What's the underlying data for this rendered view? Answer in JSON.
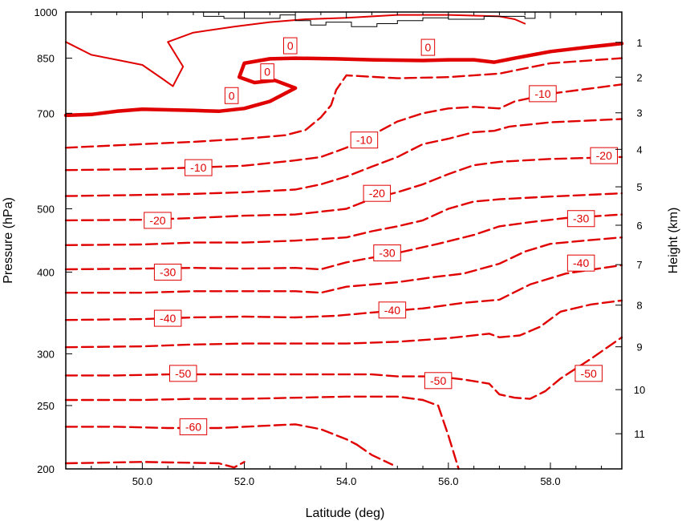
{
  "chart_data": {
    "type": "line",
    "title": "",
    "xlabel": "Latitude (deg)",
    "ylabel": "Pressure (hPa)",
    "y2label": "Height (km)",
    "xlim": [
      48.5,
      59.4
    ],
    "ylim": [
      1000,
      200
    ],
    "y_scale": "log",
    "x_ticks": [
      50.0,
      52.0,
      54.0,
      56.0,
      58.0
    ],
    "x_tick_labels": [
      "50.0",
      "52.0",
      "54.0",
      "56.0",
      "58.0"
    ],
    "y_ticks": [
      200,
      250,
      300,
      400,
      500,
      700,
      850,
      1000
    ],
    "y_tick_labels": [
      "200",
      "250",
      "300",
      "400",
      "500",
      "700",
      "850",
      "1000"
    ],
    "y2_ticks": [
      1,
      2,
      3,
      4,
      5,
      6,
      7,
      8,
      9,
      10,
      11
    ],
    "y2_tick_labels": [
      "1",
      "2",
      "3",
      "4",
      "5",
      "6",
      "7",
      "8",
      "9",
      "10",
      "11"
    ],
    "line_color": "#e00000",
    "terrain_color": "#000000",
    "series": [
      {
        "level": -60,
        "style": "dashed",
        "points": [
          [
            48.5,
            232
          ],
          [
            49.5,
            232
          ],
          [
            50.5,
            231
          ],
          [
            51.5,
            231
          ],
          [
            52.5,
            233
          ],
          [
            53.0,
            234
          ],
          [
            53.5,
            230
          ],
          [
            54.0,
            222
          ],
          [
            54.2,
            218
          ]
        ]
      },
      {
        "level": -60,
        "style": "dashed",
        "points": [
          [
            48.5,
            204
          ],
          [
            50.0,
            205
          ],
          [
            51.5,
            204
          ],
          [
            51.8,
            201
          ],
          [
            52.0,
            205
          ]
        ]
      },
      {
        "level": -60,
        "style": "dashed",
        "points": [
          [
            54.2,
            218
          ],
          [
            54.5,
            210
          ],
          [
            54.9,
            203
          ]
        ]
      },
      {
        "level": -60,
        "style": "dashed",
        "points": [
          [
            55.5,
            255
          ],
          [
            55.8,
            250
          ],
          [
            56.0,
            225
          ],
          [
            56.2,
            200
          ]
        ]
      },
      {
        "level": -50,
        "style": "dashed",
        "points": [
          [
            48.5,
            255
          ],
          [
            50.0,
            255
          ],
          [
            51.0,
            256
          ],
          [
            52.0,
            256
          ],
          [
            53.0,
            257
          ],
          [
            54.0,
            258
          ],
          [
            55.0,
            258
          ],
          [
            55.5,
            255
          ]
        ]
      },
      {
        "level": -50,
        "style": "dashed",
        "points": [
          [
            48.5,
            278
          ],
          [
            49.5,
            278
          ],
          [
            50.5,
            279
          ],
          [
            51.5,
            279
          ],
          [
            52.5,
            279
          ],
          [
            53.5,
            279
          ],
          [
            54.5,
            279
          ],
          [
            55.0,
            277
          ],
          [
            55.8,
            277
          ],
          [
            56.3,
            274
          ],
          [
            56.8,
            270
          ],
          [
            57.0,
            260
          ],
          [
            57.3,
            257
          ],
          [
            57.6,
            256
          ],
          [
            57.9,
            263
          ],
          [
            58.2,
            275
          ],
          [
            58.8,
            295
          ],
          [
            59.4,
            318
          ]
        ]
      },
      {
        "level": -40,
        "style": "dashed",
        "points": [
          [
            48.5,
            307
          ],
          [
            50.0,
            308
          ],
          [
            51.0,
            310
          ],
          [
            52.0,
            311
          ],
          [
            53.0,
            311
          ],
          [
            54.0,
            311
          ],
          [
            55.0,
            313
          ],
          [
            56.0,
            317
          ],
          [
            56.8,
            322
          ],
          [
            57.0,
            318
          ],
          [
            57.4,
            320
          ],
          [
            57.8,
            330
          ],
          [
            58.2,
            348
          ],
          [
            58.8,
            357
          ],
          [
            59.4,
            362
          ]
        ]
      },
      {
        "level": -40,
        "style": "dashed",
        "points": [
          [
            48.5,
            338
          ],
          [
            50.0,
            339
          ],
          [
            51.0,
            341
          ],
          [
            52.0,
            342
          ],
          [
            53.0,
            341
          ],
          [
            53.8,
            343
          ],
          [
            54.5,
            347
          ],
          [
            55.5,
            352
          ],
          [
            56.3,
            359
          ],
          [
            57.0,
            363
          ],
          [
            57.6,
            383
          ],
          [
            58.3,
            398
          ],
          [
            59.4,
            410
          ]
        ]
      },
      {
        "level": -30,
        "style": "dashed",
        "points": [
          [
            48.5,
            372
          ],
          [
            50.0,
            372
          ],
          [
            51.0,
            374
          ],
          [
            52.0,
            374
          ],
          [
            53.0,
            374
          ],
          [
            53.5,
            372
          ],
          [
            54.0,
            380
          ],
          [
            55.0,
            386
          ],
          [
            55.7,
            393
          ],
          [
            56.3,
            398
          ],
          [
            57.0,
            412
          ],
          [
            57.5,
            430
          ],
          [
            58.0,
            442
          ],
          [
            58.8,
            448
          ],
          [
            59.4,
            452
          ]
        ]
      },
      {
        "level": -30,
        "style": "dashed",
        "points": [
          [
            48.5,
            404
          ],
          [
            50.0,
            405
          ],
          [
            51.0,
            406
          ],
          [
            52.0,
            405
          ],
          [
            53.0,
            406
          ],
          [
            53.5,
            404
          ],
          [
            54.0,
            414
          ],
          [
            55.0,
            428
          ],
          [
            55.8,
            442
          ],
          [
            56.5,
            456
          ],
          [
            57.0,
            470
          ],
          [
            57.6,
            477
          ],
          [
            58.3,
            484
          ],
          [
            59.4,
            490
          ]
        ]
      },
      {
        "level": -20,
        "style": "dashed",
        "points": [
          [
            48.5,
            440
          ],
          [
            50.0,
            441
          ],
          [
            51.0,
            444
          ],
          [
            52.0,
            444
          ],
          [
            53.0,
            447
          ],
          [
            54.0,
            452
          ],
          [
            54.5,
            462
          ],
          [
            55.0,
            470
          ],
          [
            55.5,
            480
          ],
          [
            56.0,
            500
          ],
          [
            56.5,
            513
          ],
          [
            57.0,
            517
          ],
          [
            58.0,
            522
          ],
          [
            59.4,
            528
          ]
        ]
      },
      {
        "level": -20,
        "style": "dashed",
        "points": [
          [
            48.5,
            480
          ],
          [
            50.0,
            481
          ],
          [
            51.0,
            484
          ],
          [
            52.0,
            488
          ],
          [
            53.0,
            490
          ],
          [
            54.0,
            500
          ],
          [
            54.5,
            518
          ],
          [
            55.0,
            530
          ],
          [
            55.5,
            545
          ],
          [
            56.0,
            565
          ],
          [
            56.5,
            583
          ],
          [
            57.0,
            590
          ],
          [
            58.0,
            596
          ],
          [
            59.4,
            600
          ]
        ]
      },
      {
        "level": -10,
        "style": "dashed",
        "points": [
          [
            48.5,
            523
          ],
          [
            50.0,
            525
          ],
          [
            51.0,
            527
          ],
          [
            52.0,
            530
          ],
          [
            53.0,
            535
          ],
          [
            53.5,
            545
          ],
          [
            54.0,
            560
          ],
          [
            54.5,
            580
          ],
          [
            55.0,
            600
          ],
          [
            55.5,
            628
          ],
          [
            56.0,
            640
          ],
          [
            56.5,
            655
          ],
          [
            56.9,
            658
          ],
          [
            57.2,
            668
          ],
          [
            58.0,
            678
          ],
          [
            59.4,
            686
          ]
        ]
      },
      {
        "level": -10,
        "style": "dashed",
        "points": [
          [
            48.5,
            573
          ],
          [
            50.0,
            575
          ],
          [
            51.0,
            578
          ],
          [
            52.0,
            582
          ],
          [
            53.0,
            593
          ],
          [
            53.5,
            600
          ],
          [
            54.0,
            620
          ],
          [
            54.5,
            648
          ],
          [
            55.0,
            680
          ],
          [
            55.5,
            700
          ],
          [
            56.0,
            712
          ],
          [
            56.5,
            716
          ],
          [
            57.0,
            712
          ],
          [
            57.3,
            730
          ],
          [
            58.0,
            750
          ],
          [
            59.4,
            775
          ]
        ]
      },
      {
        "level": -10,
        "style": "dashed",
        "points": [
          [
            48.5,
            620
          ],
          [
            50.0,
            628
          ],
          [
            51.0,
            633
          ],
          [
            52.0,
            640
          ],
          [
            52.8,
            648
          ],
          [
            53.2,
            660
          ],
          [
            53.5,
            690
          ],
          [
            53.7,
            720
          ],
          [
            53.8,
            760
          ],
          [
            54.0,
            800
          ],
          [
            55.0,
            792
          ],
          [
            56.0,
            795
          ],
          [
            57.0,
            805
          ],
          [
            58.0,
            835
          ],
          [
            59.4,
            850
          ]
        ]
      },
      {
        "level": 0,
        "style": "bold",
        "points": [
          [
            48.5,
            695
          ],
          [
            49.0,
            697
          ],
          [
            49.5,
            705
          ],
          [
            50.0,
            710
          ],
          [
            51.0,
            707
          ],
          [
            51.5,
            705
          ],
          [
            52.0,
            712
          ],
          [
            52.5,
            730
          ],
          [
            53.0,
            765
          ],
          [
            52.6,
            786
          ],
          [
            52.2,
            780
          ],
          [
            51.9,
            795
          ],
          [
            52.0,
            835
          ],
          [
            52.5,
            848
          ],
          [
            53.0,
            850
          ],
          [
            53.8,
            848
          ],
          [
            54.5,
            845
          ],
          [
            55.5,
            843
          ],
          [
            56.0,
            845
          ],
          [
            56.5,
            845
          ],
          [
            56.9,
            838
          ],
          [
            57.3,
            850
          ],
          [
            58.0,
            870
          ],
          [
            58.8,
            885
          ],
          [
            59.4,
            895
          ]
        ]
      },
      {
        "level": 0,
        "style": "solid",
        "points": [
          [
            48.5,
            900
          ],
          [
            49.0,
            860
          ],
          [
            49.5,
            845
          ],
          [
            50.0,
            830
          ],
          [
            50.4,
            790
          ],
          [
            50.6,
            770
          ],
          [
            50.8,
            825
          ],
          [
            50.5,
            900
          ],
          [
            51.0,
            930
          ],
          [
            51.8,
            950
          ],
          [
            52.5,
            965
          ],
          [
            53.2,
            975
          ],
          [
            54.0,
            980
          ],
          [
            55.0,
            990
          ],
          [
            56.0,
            990
          ],
          [
            57.0,
            985
          ],
          [
            57.3,
            975
          ],
          [
            57.5,
            960
          ]
        ]
      }
    ],
    "contour_labels": [
      {
        "text": "-60",
        "x": 51.0,
        "y": 232
      },
      {
        "text": "-50",
        "x": 50.8,
        "y": 280
      },
      {
        "text": "-50",
        "x": 55.8,
        "y": 273
      },
      {
        "text": "-50",
        "x": 58.75,
        "y": 280
      },
      {
        "text": "-40",
        "x": 50.5,
        "y": 340
      },
      {
        "text": "-40",
        "x": 54.9,
        "y": 350
      },
      {
        "text": "-40",
        "x": 58.6,
        "y": 413
      },
      {
        "text": "-30",
        "x": 50.5,
        "y": 400
      },
      {
        "text": "-30",
        "x": 54.8,
        "y": 428
      },
      {
        "text": "-30",
        "x": 58.6,
        "y": 483
      },
      {
        "text": "-20",
        "x": 50.3,
        "y": 480
      },
      {
        "text": "-20",
        "x": 54.6,
        "y": 528
      },
      {
        "text": "-20",
        "x": 59.05,
        "y": 603
      },
      {
        "text": "-10",
        "x": 51.1,
        "y": 578
      },
      {
        "text": "-10",
        "x": 54.35,
        "y": 637
      },
      {
        "text": "-10",
        "x": 57.85,
        "y": 750
      },
      {
        "text": "0",
        "x": 51.75,
        "y": 745
      },
      {
        "text": "0",
        "x": 52.45,
        "y": 810
      },
      {
        "text": "0",
        "x": 52.9,
        "y": 888
      },
      {
        "text": "0",
        "x": 55.6,
        "y": 883
      }
    ],
    "terrain": [
      [
        51.2,
        1000
      ],
      [
        51.2,
        985
      ],
      [
        51.6,
        985
      ],
      [
        51.6,
        978
      ],
      [
        52.7,
        978
      ],
      [
        52.7,
        990
      ],
      [
        53.0,
        990
      ],
      [
        53.0,
        970
      ],
      [
        53.3,
        970
      ],
      [
        53.3,
        955
      ],
      [
        53.6,
        955
      ],
      [
        53.6,
        965
      ],
      [
        54.1,
        965
      ],
      [
        54.1,
        950
      ],
      [
        54.6,
        950
      ],
      [
        54.6,
        960
      ],
      [
        55.0,
        960
      ],
      [
        55.0,
        970
      ],
      [
        55.5,
        970
      ],
      [
        55.5,
        980
      ],
      [
        56.0,
        980
      ],
      [
        56.0,
        975
      ],
      [
        56.7,
        975
      ],
      [
        56.7,
        985
      ],
      [
        57.5,
        985
      ],
      [
        57.5,
        978
      ],
      [
        57.7,
        978
      ],
      [
        57.7,
        1000
      ]
    ]
  }
}
